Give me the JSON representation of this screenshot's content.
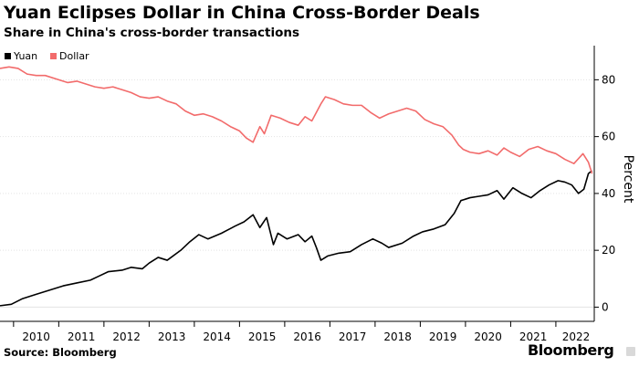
{
  "chart_data": {
    "type": "line",
    "title": "Yuan Eclipses Dollar in China Cross-Border Deals",
    "subtitle": "Share in China's cross-border transactions",
    "ylabel": "Percent",
    "ylim": [
      -5,
      92
    ],
    "yticks": [
      0,
      20,
      40,
      60,
      80
    ],
    "xlim": [
      2009.7,
      2022.85
    ],
    "xticks": [
      2010,
      2011,
      2012,
      2013,
      2014,
      2015,
      2016,
      2017,
      2018,
      2019,
      2020,
      2021,
      2022
    ],
    "legend_position": "top-left",
    "grid": "horizontal",
    "series": [
      {
        "name": "Yuan",
        "color": "#000000",
        "points": [
          [
            2009.7,
            0.5
          ],
          [
            2009.95,
            1.0
          ],
          [
            2010.2,
            3.0
          ],
          [
            2010.5,
            4.5
          ],
          [
            2010.8,
            6.0
          ],
          [
            2011.1,
            7.5
          ],
          [
            2011.4,
            8.5
          ],
          [
            2011.7,
            9.5
          ],
          [
            2011.9,
            11.0
          ],
          [
            2012.1,
            12.5
          ],
          [
            2012.4,
            13.0
          ],
          [
            2012.6,
            14.0
          ],
          [
            2012.85,
            13.5
          ],
          [
            2013.0,
            15.5
          ],
          [
            2013.2,
            17.5
          ],
          [
            2013.4,
            16.5
          ],
          [
            2013.7,
            20.0
          ],
          [
            2013.9,
            23.0
          ],
          [
            2014.1,
            25.5
          ],
          [
            2014.3,
            24.0
          ],
          [
            2014.6,
            26.0
          ],
          [
            2014.9,
            28.5
          ],
          [
            2015.1,
            30.0
          ],
          [
            2015.3,
            32.5
          ],
          [
            2015.45,
            28.0
          ],
          [
            2015.6,
            31.5
          ],
          [
            2015.75,
            22.0
          ],
          [
            2015.85,
            26.0
          ],
          [
            2016.05,
            24.0
          ],
          [
            2016.3,
            25.5
          ],
          [
            2016.45,
            23.0
          ],
          [
            2016.6,
            25.0
          ],
          [
            2016.7,
            21.0
          ],
          [
            2016.8,
            16.5
          ],
          [
            2016.95,
            18.0
          ],
          [
            2017.2,
            19.0
          ],
          [
            2017.45,
            19.5
          ],
          [
            2017.7,
            22.0
          ],
          [
            2017.95,
            24.0
          ],
          [
            2018.15,
            22.5
          ],
          [
            2018.3,
            21.0
          ],
          [
            2018.6,
            22.5
          ],
          [
            2018.85,
            25.0
          ],
          [
            2019.05,
            26.5
          ],
          [
            2019.3,
            27.5
          ],
          [
            2019.55,
            29.0
          ],
          [
            2019.75,
            33.0
          ],
          [
            2019.9,
            37.5
          ],
          [
            2020.1,
            38.5
          ],
          [
            2020.3,
            39.0
          ],
          [
            2020.5,
            39.5
          ],
          [
            2020.7,
            41.0
          ],
          [
            2020.85,
            38.0
          ],
          [
            2021.05,
            42.0
          ],
          [
            2021.25,
            40.0
          ],
          [
            2021.45,
            38.5
          ],
          [
            2021.65,
            41.0
          ],
          [
            2021.85,
            43.0
          ],
          [
            2022.05,
            44.5
          ],
          [
            2022.2,
            44.0
          ],
          [
            2022.35,
            43.0
          ],
          [
            2022.5,
            40.0
          ],
          [
            2022.62,
            41.5
          ],
          [
            2022.72,
            47.0
          ],
          [
            2022.8,
            48.0
          ]
        ]
      },
      {
        "name": "Dollar",
        "color": "#f26b6b",
        "points": [
          [
            2009.7,
            84.0
          ],
          [
            2009.9,
            84.5
          ],
          [
            2010.1,
            84.0
          ],
          [
            2010.3,
            82.0
          ],
          [
            2010.5,
            81.5
          ],
          [
            2010.7,
            81.5
          ],
          [
            2011.0,
            80.0
          ],
          [
            2011.2,
            79.0
          ],
          [
            2011.4,
            79.5
          ],
          [
            2011.6,
            78.5
          ],
          [
            2011.8,
            77.5
          ],
          [
            2012.0,
            77.0
          ],
          [
            2012.2,
            77.5
          ],
          [
            2012.4,
            76.5
          ],
          [
            2012.6,
            75.5
          ],
          [
            2012.8,
            74.0
          ],
          [
            2013.0,
            73.5
          ],
          [
            2013.2,
            74.0
          ],
          [
            2013.4,
            72.5
          ],
          [
            2013.6,
            71.5
          ],
          [
            2013.8,
            69.0
          ],
          [
            2014.0,
            67.5
          ],
          [
            2014.2,
            68.0
          ],
          [
            2014.4,
            67.0
          ],
          [
            2014.6,
            65.5
          ],
          [
            2014.8,
            63.5
          ],
          [
            2015.0,
            62.0
          ],
          [
            2015.15,
            59.5
          ],
          [
            2015.3,
            58.0
          ],
          [
            2015.45,
            63.5
          ],
          [
            2015.55,
            61.0
          ],
          [
            2015.7,
            67.5
          ],
          [
            2015.9,
            66.5
          ],
          [
            2016.1,
            65.0
          ],
          [
            2016.3,
            64.0
          ],
          [
            2016.45,
            67.0
          ],
          [
            2016.6,
            65.5
          ],
          [
            2016.8,
            71.5
          ],
          [
            2016.9,
            74.0
          ],
          [
            2017.1,
            73.0
          ],
          [
            2017.3,
            71.5
          ],
          [
            2017.5,
            71.0
          ],
          [
            2017.7,
            71.0
          ],
          [
            2017.9,
            68.5
          ],
          [
            2018.1,
            66.5
          ],
          [
            2018.3,
            68.0
          ],
          [
            2018.5,
            69.0
          ],
          [
            2018.7,
            70.0
          ],
          [
            2018.9,
            69.0
          ],
          [
            2019.1,
            66.0
          ],
          [
            2019.3,
            64.5
          ],
          [
            2019.5,
            63.5
          ],
          [
            2019.7,
            60.5
          ],
          [
            2019.85,
            57.0
          ],
          [
            2019.95,
            55.5
          ],
          [
            2020.1,
            54.5
          ],
          [
            2020.3,
            54.0
          ],
          [
            2020.5,
            55.0
          ],
          [
            2020.7,
            53.5
          ],
          [
            2020.85,
            56.0
          ],
          [
            2021.0,
            54.5
          ],
          [
            2021.2,
            53.0
          ],
          [
            2021.4,
            55.5
          ],
          [
            2021.6,
            56.5
          ],
          [
            2021.8,
            55.0
          ],
          [
            2022.0,
            54.0
          ],
          [
            2022.2,
            52.0
          ],
          [
            2022.4,
            50.5
          ],
          [
            2022.6,
            54.0
          ],
          [
            2022.72,
            51.0
          ],
          [
            2022.8,
            47.0
          ]
        ]
      }
    ]
  },
  "footer": {
    "source": "Source: Bloomberg",
    "brand": "Bloomberg"
  }
}
